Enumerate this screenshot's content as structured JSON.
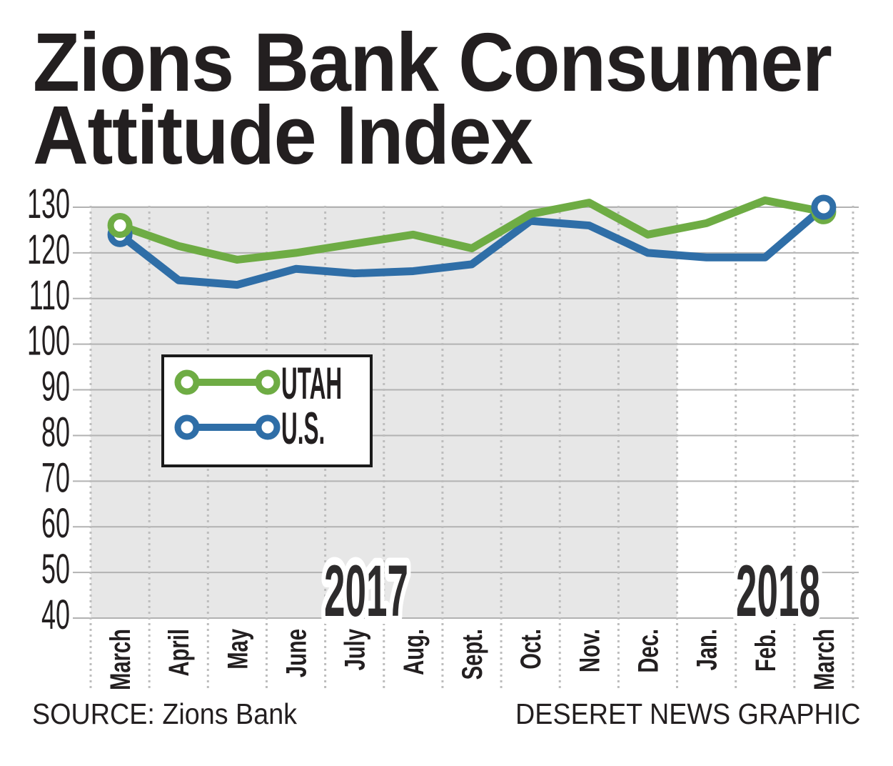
{
  "title": {
    "line1": "Zions Bank Consumer",
    "line2": "Attitude Index"
  },
  "footer": {
    "source_label": "SOURCE:",
    "source_value": "Zions Bank",
    "source_full": "SOURCE: Zions Bank",
    "credit": "DESERET NEWS GRAPHIC"
  },
  "chart_data": {
    "type": "line",
    "title": "Zions Bank Consumer Attitude Index",
    "x_categories": [
      "March",
      "April",
      "May",
      "June",
      "July",
      "Aug.",
      "Sept.",
      "Oct.",
      "Nov.",
      "Dec.",
      "Jan.",
      "Feb.",
      "March"
    ],
    "series": [
      {
        "name": "UTAH",
        "color": "#6eac44",
        "values": [
          126,
          121.5,
          118.5,
          120,
          122,
          124,
          121,
          128.5,
          131,
          124,
          126.5,
          131.5,
          129
        ]
      },
      {
        "name": "U.S.",
        "color": "#2f6ea7",
        "values": [
          124,
          114,
          113,
          116.5,
          115.5,
          116,
          117.5,
          127,
          126,
          120,
          119,
          119,
          130
        ]
      }
    ],
    "ylim": [
      40,
      130
    ],
    "ytick_step": 10,
    "yticks": [
      130,
      120,
      110,
      100,
      90,
      80,
      70,
      60,
      50,
      40
    ],
    "grid": "horizontal-solid, vertical-dotted",
    "legend_position": "inside-left-middle",
    "year_bands": [
      {
        "label": "2017",
        "start_month_index": 0,
        "end_month_index": 9,
        "shaded": true
      },
      {
        "label": "2018",
        "start_month_index": 10,
        "end_month_index": 12,
        "shaded": false
      }
    ],
    "colors": {
      "band_2017_bg": "#e7e7e7",
      "band_2018_bg": "#ffffff",
      "gridline": "#b2b2b2",
      "dotted_line": "#bdbdbd",
      "axis_text": "#231f20",
      "year_label_fill": "#2d2b2c",
      "year_label_outline": "#ffffff",
      "legend_border": "#1a1a1a",
      "legend_bg": "#ffffff"
    },
    "marker_style": "open-circle-at-first-and-last-point"
  }
}
